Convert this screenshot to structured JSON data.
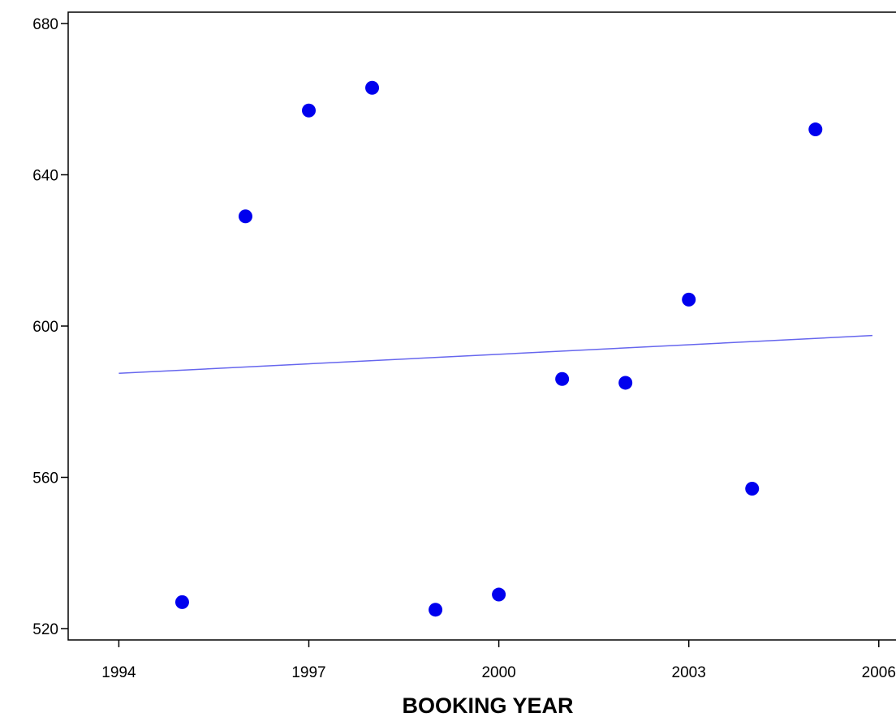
{
  "chart_data": {
    "type": "scatter",
    "title": "",
    "xlabel": "BOOKING YEAR",
    "ylabel": "",
    "xlim": [
      1993.2,
      2006.4
    ],
    "ylim": [
      517,
      683
    ],
    "x_ticks": [
      1994,
      1997,
      2000,
      2003,
      2006
    ],
    "y_ticks": [
      520,
      560,
      600,
      640,
      680
    ],
    "grid": false,
    "legend": "none",
    "series": [
      {
        "color": "#0000ee",
        "points": [
          {
            "x": 1995,
            "y": 527
          },
          {
            "x": 1996,
            "y": 629
          },
          {
            "x": 1997,
            "y": 657
          },
          {
            "x": 1998,
            "y": 663
          },
          {
            "x": 1999,
            "y": 525
          },
          {
            "x": 2000,
            "y": 529
          },
          {
            "x": 2001,
            "y": 586
          },
          {
            "x": 2002,
            "y": 585
          },
          {
            "x": 2003,
            "y": 607
          },
          {
            "x": 2004,
            "y": 557
          },
          {
            "x": 2005,
            "y": 652
          }
        ]
      }
    ],
    "fit_line": {
      "color": "#6666ee",
      "start": {
        "x": 1994,
        "y": 587.5
      },
      "end": {
        "x": 2005.9,
        "y": 597.5
      }
    }
  }
}
